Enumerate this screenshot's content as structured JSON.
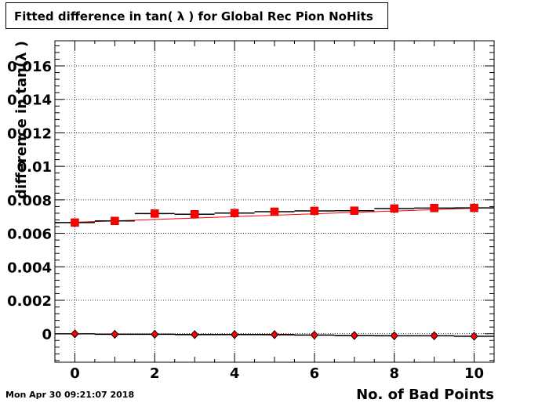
{
  "title": "Fitted difference in tan( λ ) for Global Rec Pion NoHits",
  "timestamp": "Mon Apr 30 09:21:07 2018",
  "chart_data": {
    "type": "scatter",
    "title": "Fitted difference in tan( λ ) for Global Rec Pion NoHits",
    "xlabel": "No. of Bad Points",
    "ylabel": "difference in tan(λ )",
    "xlim": [
      -0.5,
      10.5
    ],
    "ylim": [
      -0.0017,
      0.0175
    ],
    "grid": true,
    "x_ticks": [
      0,
      2,
      4,
      6,
      8,
      10
    ],
    "y_ticks": [
      0,
      0.002,
      0.004,
      0.006,
      0.008,
      0.01,
      0.012,
      0.014,
      0.016
    ],
    "y_tick_labels": [
      "0",
      "0.002",
      "0.004",
      "0.006",
      "0.008",
      "0.01",
      "0.012",
      "0.014",
      "0.016"
    ],
    "x": [
      0,
      1,
      2,
      3,
      4,
      5,
      6,
      7,
      8,
      9,
      10
    ],
    "series": [
      {
        "marker": "square",
        "color": "#ff0000",
        "values": [
          0.00664,
          0.00674,
          0.00718,
          0.00714,
          0.00721,
          0.00729,
          0.00734,
          0.00735,
          0.00748,
          0.00751,
          0.00752
        ],
        "fit_line": [
          0.00662,
          0.00754
        ]
      },
      {
        "marker": "diamond",
        "color": "#ff0000",
        "values": [
          0.0,
          -3e-05,
          -3e-05,
          -5e-05,
          -5e-05,
          -5e-05,
          -8e-05,
          -0.0001,
          -0.00012,
          -0.00012,
          -0.00015
        ],
        "fit_line": [
          0.0,
          -0.00014
        ]
      }
    ]
  }
}
